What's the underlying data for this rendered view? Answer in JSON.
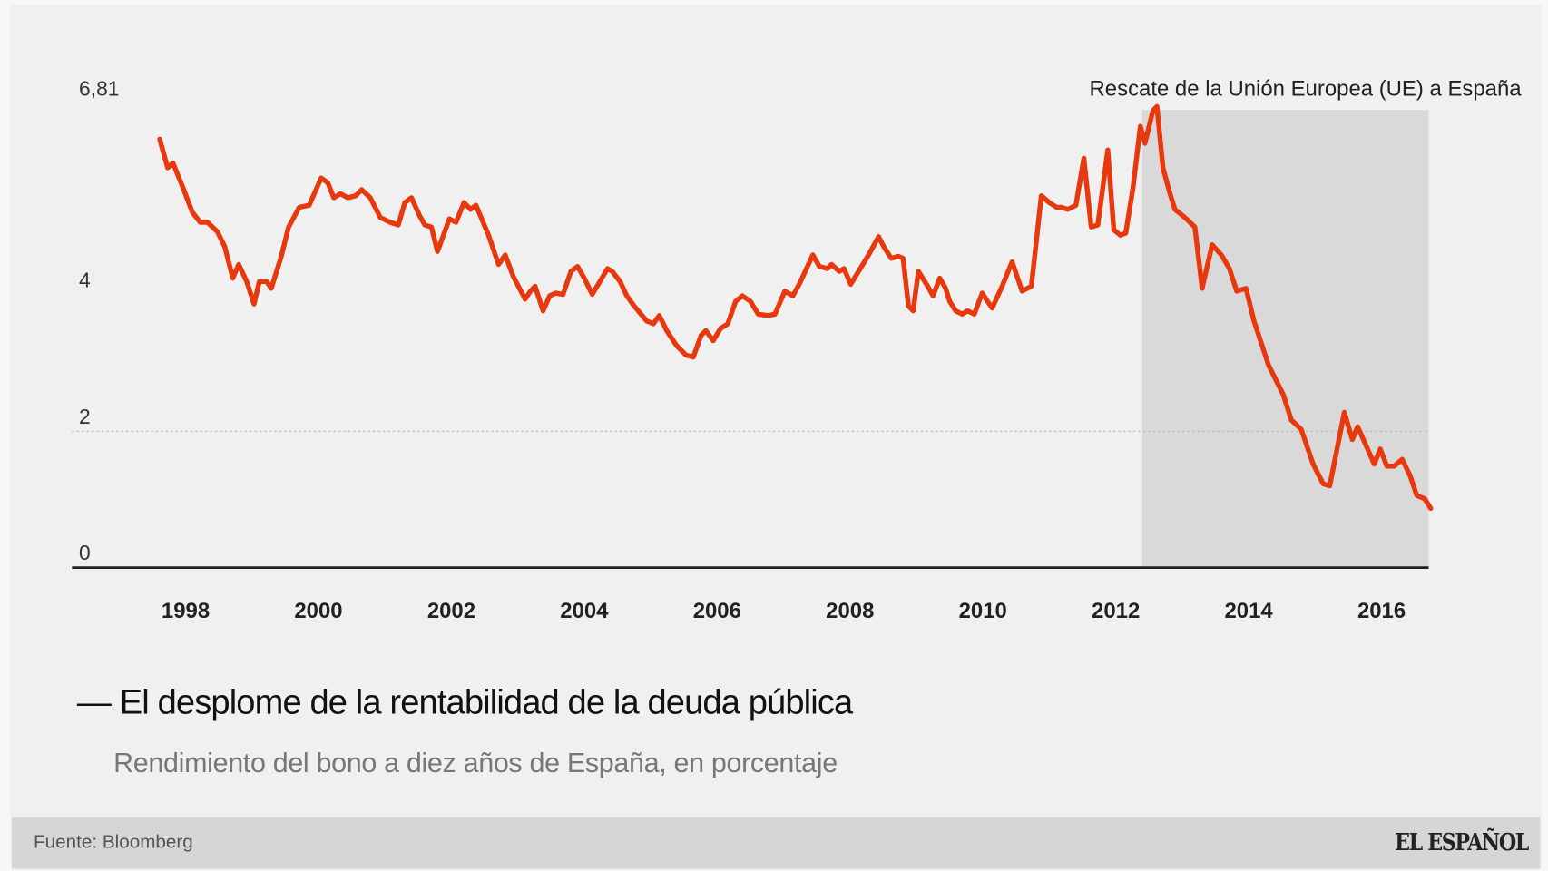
{
  "chart_data": {
    "type": "line",
    "title": "— El desplome de la rentabilidad de la deuda pública",
    "subtitle": "Rendimiento del bono a diez años de España, en porcentaje",
    "xlabel": "",
    "ylabel": "",
    "xlim": [
      1996.29,
      2016.71
    ],
    "ylim": [
      0,
      6.81
    ],
    "grid": "dotted line at 2 only",
    "legend": "none",
    "line_color": "#e8380d",
    "shade_color": "#d9d9d9",
    "xticks": [
      1998,
      2000,
      2002,
      2004,
      2006,
      2008,
      2010,
      2012,
      2014,
      2016
    ],
    "xtick_labels": [
      "1998",
      "2000",
      "2002",
      "2004",
      "2006",
      "2008",
      "2010",
      "2012",
      "2014",
      "2016"
    ],
    "yticks": [
      0,
      2,
      4,
      6.81
    ],
    "ytick_labels": [
      "0",
      "2",
      "4",
      "6,81"
    ],
    "annotation": {
      "text": "Rescate de la Unión Europea (UE) a España",
      "x_start": 2012.4,
      "x_end": 2016.71,
      "y_top": 6.72
    },
    "series": [
      {
        "x": [
          1997.61,
          1997.73,
          1997.81,
          1997.96,
          1998.1,
          1998.22,
          1998.33,
          1998.48,
          1998.59,
          1998.71,
          1998.8,
          1998.92,
          1999.03,
          1999.11,
          1999.22,
          1999.29,
          1999.44,
          1999.55,
          1999.71,
          1999.86,
          2000.04,
          2000.14,
          2000.23,
          2000.33,
          2000.44,
          2000.56,
          2000.65,
          2000.78,
          2000.93,
          2001.08,
          2001.2,
          2001.3,
          2001.4,
          2001.52,
          2001.6,
          2001.7,
          2001.79,
          2001.97,
          2002.07,
          2002.19,
          2002.29,
          2002.37,
          2002.56,
          2002.71,
          2002.81,
          2002.93,
          2003.11,
          2003.19,
          2003.26,
          2003.38,
          2003.48,
          2003.57,
          2003.68,
          2003.8,
          2003.9,
          2004.0,
          2004.12,
          2004.35,
          2004.42,
          2004.54,
          2004.64,
          2004.75,
          2004.94,
          2005.04,
          2005.13,
          2005.24,
          2005.39,
          2005.53,
          2005.64,
          2005.76,
          2005.83,
          2005.94,
          2006.05,
          2006.16,
          2006.28,
          2006.38,
          2006.5,
          2006.62,
          2006.77,
          2006.87,
          2007.02,
          2007.14,
          2007.24,
          2007.44,
          2007.54,
          2007.66,
          2007.72,
          2007.84,
          2007.91,
          2008.01,
          2008.13,
          2008.28,
          2008.43,
          2008.51,
          2008.62,
          2008.73,
          2008.8,
          2008.88,
          2008.95,
          2009.03,
          2009.17,
          2009.25,
          2009.35,
          2009.44,
          2009.5,
          2009.59,
          2009.69,
          2009.77,
          2009.87,
          2009.99,
          2010.07,
          2010.14,
          2010.29,
          2010.44,
          2010.59,
          2010.73,
          2010.88,
          2011.0,
          2011.11,
          2011.18,
          2011.28,
          2011.4,
          2011.52,
          2011.63,
          2011.73,
          2011.88,
          2011.97,
          2012.07,
          2012.15,
          2012.26,
          2012.37,
          2012.44,
          2012.56,
          2012.62,
          2012.71,
          2012.81,
          2012.89,
          2013.04,
          2013.19,
          2013.3,
          2013.45,
          2013.59,
          2013.71,
          2013.82,
          2013.96,
          2014.08,
          2014.3,
          2014.52,
          2014.64,
          2014.79,
          2014.97,
          2015.12,
          2015.22,
          2015.44,
          2015.56,
          2015.64,
          2015.89,
          2015.98,
          2016.08,
          2016.19,
          2016.31,
          2016.43,
          2016.53,
          2016.65,
          2016.74
        ],
        "values": [
          6.29,
          5.87,
          5.94,
          5.58,
          5.22,
          5.07,
          5.07,
          4.93,
          4.71,
          4.25,
          4.45,
          4.2,
          3.87,
          4.2,
          4.2,
          4.1,
          4.57,
          5.0,
          5.29,
          5.32,
          5.72,
          5.65,
          5.43,
          5.49,
          5.43,
          5.46,
          5.55,
          5.43,
          5.14,
          5.07,
          5.03,
          5.36,
          5.43,
          5.17,
          5.03,
          5.0,
          4.64,
          5.12,
          5.07,
          5.36,
          5.26,
          5.32,
          4.88,
          4.45,
          4.59,
          4.28,
          3.94,
          4.06,
          4.13,
          3.77,
          3.99,
          4.03,
          4.01,
          4.35,
          4.42,
          4.25,
          4.01,
          4.39,
          4.35,
          4.2,
          3.99,
          3.84,
          3.62,
          3.58,
          3.7,
          3.48,
          3.26,
          3.12,
          3.09,
          3.41,
          3.48,
          3.33,
          3.51,
          3.58,
          3.91,
          3.99,
          3.91,
          3.72,
          3.7,
          3.72,
          4.06,
          3.99,
          4.17,
          4.59,
          4.42,
          4.39,
          4.45,
          4.35,
          4.39,
          4.16,
          4.35,
          4.59,
          4.86,
          4.71,
          4.54,
          4.57,
          4.54,
          3.84,
          3.77,
          4.35,
          4.13,
          3.99,
          4.25,
          4.1,
          3.91,
          3.77,
          3.72,
          3.77,
          3.72,
          4.03,
          3.91,
          3.81,
          4.13,
          4.49,
          4.06,
          4.13,
          5.46,
          5.36,
          5.29,
          5.29,
          5.26,
          5.32,
          6.01,
          5.0,
          5.03,
          6.13,
          4.96,
          4.88,
          4.91,
          5.58,
          6.48,
          6.23,
          6.71,
          6.77,
          5.87,
          5.51,
          5.26,
          5.14,
          5.0,
          4.1,
          4.74,
          4.59,
          4.39,
          4.06,
          4.1,
          3.62,
          2.97,
          2.54,
          2.17,
          2.03,
          1.52,
          1.23,
          1.2,
          2.28,
          1.88,
          2.07,
          1.52,
          1.74,
          1.49,
          1.49,
          1.59,
          1.35,
          1.06,
          1.01,
          0.87
        ]
      }
    ]
  },
  "footer": {
    "source": "Fuente: Bloomberg",
    "logo": "EL ESPAÑOL"
  }
}
